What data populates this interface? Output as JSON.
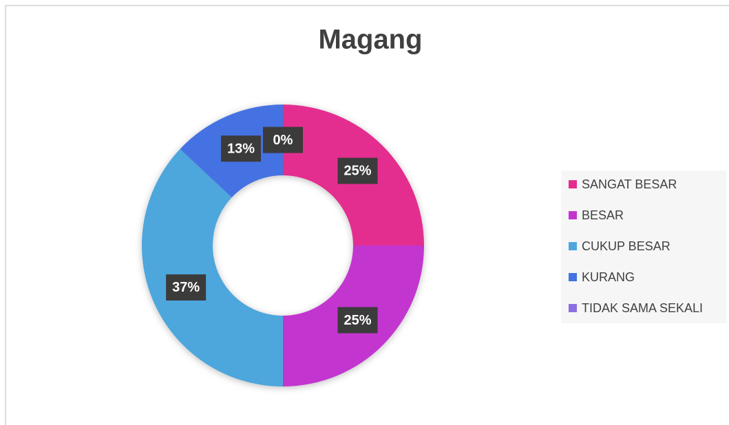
{
  "chart_data": {
    "type": "donut",
    "title": "Magang",
    "categories": [
      "SANGAT BESAR",
      "BESAR",
      "CUKUP BESAR",
      "KURANG",
      "TIDAK SAMA SEKALI"
    ],
    "values": [
      25,
      25,
      37,
      13,
      0
    ],
    "value_labels": [
      "25%",
      "25%",
      "37%",
      "13%",
      "0%"
    ],
    "colors": [
      "#e32d8f",
      "#c334cf",
      "#4ea6dc",
      "#4472e2",
      "#8b6fe0"
    ],
    "legend": "right"
  }
}
